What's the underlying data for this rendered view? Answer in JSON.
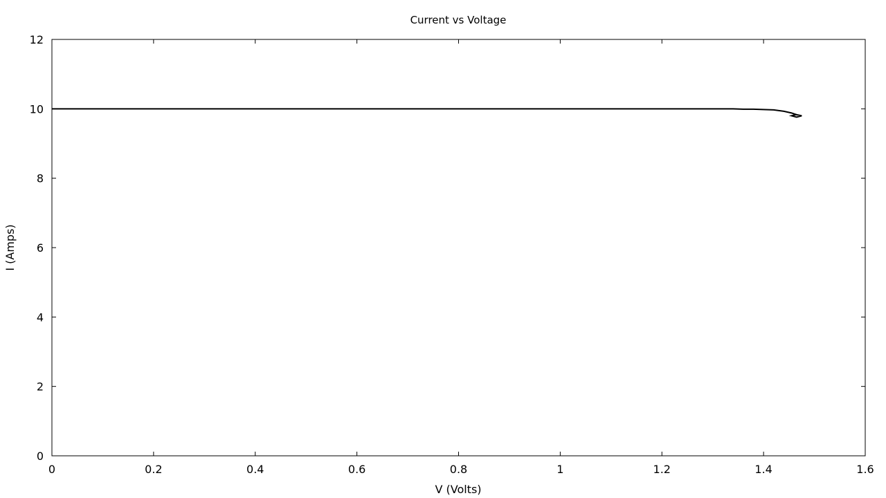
{
  "chart_data": {
    "type": "line",
    "title": "Current vs Voltage",
    "xlabel": "V (Volts)",
    "ylabel": "I (Amps)",
    "xlim": [
      0,
      1.6
    ],
    "ylim": [
      0,
      12
    ],
    "x_ticks": [
      0,
      0.2,
      0.4,
      0.6,
      0.8,
      1,
      1.2,
      1.4,
      1.6
    ],
    "x_tick_labels": [
      "0",
      "0.2",
      "0.4",
      "0.6",
      "0.8",
      "1",
      "1.2",
      "1.4",
      "1.6"
    ],
    "y_ticks": [
      0,
      2,
      4,
      6,
      8,
      10,
      12
    ],
    "y_tick_labels": [
      "0",
      "2",
      "4",
      "6",
      "8",
      "10",
      "12"
    ],
    "grid": false,
    "legend": "none",
    "line_color": "#000000",
    "series": [
      {
        "points": [
          [
            0.0,
            10.0
          ],
          [
            0.2,
            10.0
          ],
          [
            0.4,
            10.0
          ],
          [
            0.6,
            10.0
          ],
          [
            0.8,
            10.0
          ],
          [
            1.0,
            10.0
          ],
          [
            1.2,
            10.0
          ],
          [
            1.34,
            10.0
          ],
          [
            1.36,
            9.99
          ],
          [
            1.38,
            9.99
          ],
          [
            1.4,
            9.98
          ],
          [
            1.42,
            9.97
          ],
          [
            1.44,
            9.93
          ],
          [
            1.455,
            9.88
          ],
          [
            1.465,
            9.83
          ],
          [
            1.475,
            9.8
          ],
          [
            1.465,
            9.76
          ],
          [
            1.455,
            9.8
          ],
          [
            1.465,
            9.84
          ]
        ]
      }
    ]
  }
}
